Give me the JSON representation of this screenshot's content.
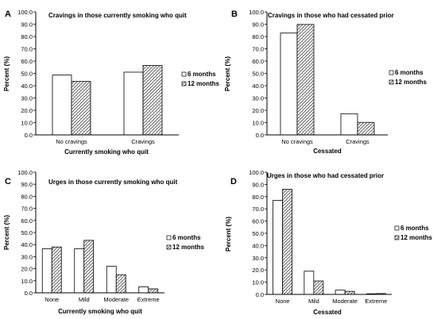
{
  "legend": {
    "labels": [
      "6 months",
      "12 months"
    ]
  },
  "chart_data": [
    {
      "panel": "A",
      "type": "bar",
      "title": "Cravings in those currently smoking who quit",
      "xlabel": "Currently smoking who quit",
      "ylabel": "Percent (%)",
      "categories": [
        "No cravings",
        "Cravings"
      ],
      "series": [
        {
          "name": "6 months",
          "values": [
            48.7,
            51.0
          ]
        },
        {
          "name": "12 months",
          "values": [
            43.5,
            56.5
          ]
        }
      ],
      "ylim": [
        0,
        100
      ],
      "yticks": [
        "0.0",
        "10.0",
        "20.0",
        "30.0",
        "40.0",
        "50.0",
        "60.0",
        "70.0",
        "80.0",
        "90.0",
        "100.0"
      ],
      "legend_position": "right",
      "grid": false
    },
    {
      "panel": "B",
      "type": "bar",
      "title": "Cravings in those who had cessated prior",
      "xlabel": "Cessated",
      "ylabel": "Percent (%)",
      "categories": [
        "No cravings",
        "Cravings"
      ],
      "series": [
        {
          "name": "6 months",
          "values": [
            82.8,
            17.2
          ]
        },
        {
          "name": "12 months",
          "values": [
            89.8,
            10.2
          ]
        }
      ],
      "ylim": [
        0,
        100
      ],
      "yticks": [
        "0.0",
        "10.0",
        "20.0",
        "30.0",
        "40.0",
        "50.0",
        "60.0",
        "70.0",
        "80.0",
        "90.0",
        "100.0"
      ],
      "legend_position": "right",
      "grid": false
    },
    {
      "panel": "C",
      "type": "bar",
      "title": "Urges in those currently smoking who quit",
      "xlabel": "Currently smoking who quit",
      "ylabel": "Percent (%)",
      "categories": [
        "None",
        "Mild",
        "Moderate",
        "Extreme"
      ],
      "series": [
        {
          "name": "6 months",
          "values": [
            36.5,
            36.5,
            22.0,
            5.0
          ]
        },
        {
          "name": "12 months",
          "values": [
            38.0,
            43.5,
            15.0,
            3.3
          ]
        }
      ],
      "ylim": [
        0,
        100
      ],
      "yticks": [
        "0.0",
        "10.0",
        "20.0",
        "30.0",
        "40.0",
        "50.0",
        "60.0",
        "70.0",
        "80.0",
        "90.0",
        "100.0"
      ],
      "legend_position": "right",
      "grid": false
    },
    {
      "panel": "D",
      "type": "bar",
      "title": "Urges in those who had cessated prior",
      "xlabel": "Cessated",
      "ylabel": "Percent (%)",
      "categories": [
        "None",
        "Mild",
        "Moderate",
        "Extreme"
      ],
      "series": [
        {
          "name": "6 months",
          "values": [
            77.0,
            19.0,
            3.5,
            0.5
          ]
        },
        {
          "name": "12 months",
          "values": [
            86.0,
            11.0,
            2.5,
            0.7
          ]
        }
      ],
      "ylim": [
        0,
        100
      ],
      "yticks": [
        "0.0",
        "10.0",
        "20.0",
        "30.0",
        "40.0",
        "50.0",
        "60.0",
        "70.0",
        "80.0",
        "90.0",
        "100.0"
      ],
      "legend_position": "right",
      "grid": false
    }
  ]
}
